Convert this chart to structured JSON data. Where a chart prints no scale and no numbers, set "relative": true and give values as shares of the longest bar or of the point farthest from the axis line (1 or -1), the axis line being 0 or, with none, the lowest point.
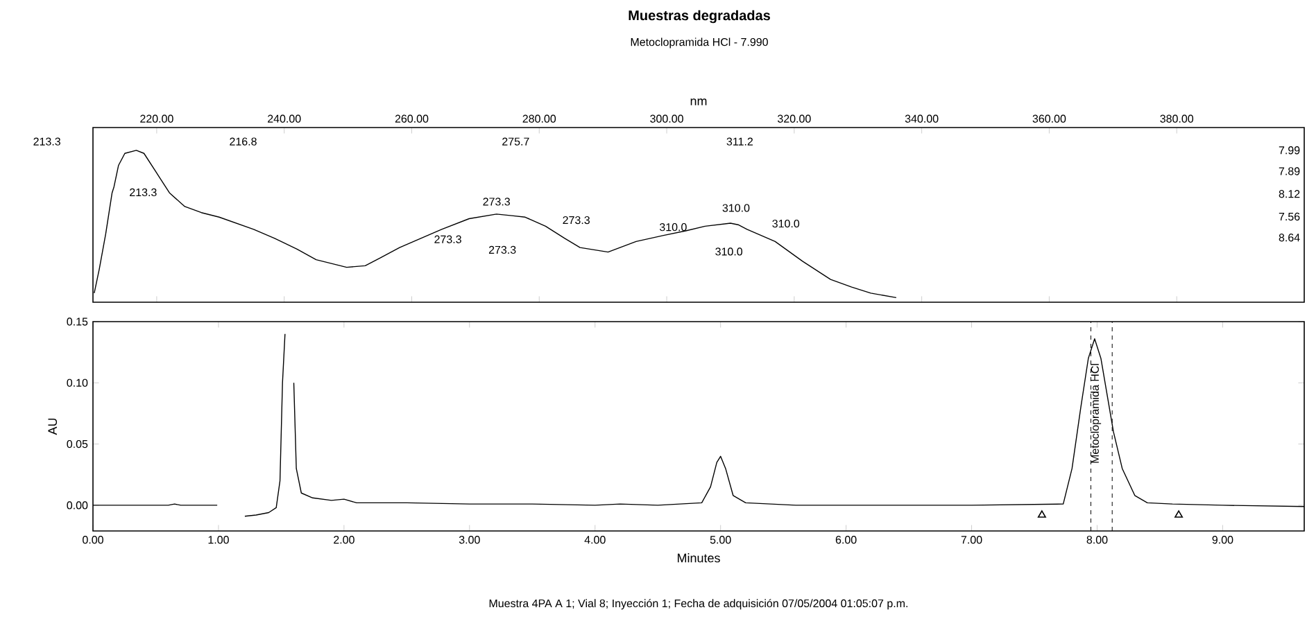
{
  "chart_data": [
    {
      "type": "line",
      "title": "Muestras degradadas",
      "subtitle": "Metoclopramida HCl - 7.990",
      "xlabel": "nm",
      "relative": true,
      "xlim": [
        210,
        400
      ],
      "xticks": [
        {
          "value": 220,
          "label": "220.00"
        },
        {
          "value": 240,
          "label": "240.00"
        },
        {
          "value": 260,
          "label": "260.00"
        },
        {
          "value": 280,
          "label": "280.00"
        },
        {
          "value": 300,
          "label": "300.00"
        },
        {
          "value": 320,
          "label": "320.00"
        },
        {
          "value": 340,
          "label": "340.00"
        },
        {
          "value": 360,
          "label": "360.00"
        },
        {
          "value": 380,
          "label": "380.00"
        }
      ],
      "series": [
        {
          "color": "#000000",
          "x": [
            210.2,
            211.0,
            212.0,
            213.0,
            213.3,
            214.0,
            215.0,
            216.8,
            218.0,
            220.0,
            222.0,
            224.4,
            227,
            229.8,
            235.2,
            238.5,
            242,
            245,
            249.8,
            252.7,
            255,
            258.1,
            264.7,
            269,
            273.3,
            275.7,
            277.8,
            281,
            284,
            286.4,
            290.8,
            295.2,
            299.5,
            303,
            306,
            310,
            311.2,
            312.6,
            317,
            321.3,
            325.7,
            329,
            332,
            336
          ],
          "values": [
            0.06,
            0.22,
            0.45,
            0.72,
            0.76,
            0.9,
            0.98,
            1.0,
            0.98,
            0.85,
            0.72,
            0.63,
            0.59,
            0.56,
            0.48,
            0.42,
            0.35,
            0.28,
            0.23,
            0.24,
            0.29,
            0.36,
            0.48,
            0.55,
            0.58,
            0.57,
            0.56,
            0.5,
            0.42,
            0.36,
            0.33,
            0.4,
            0.44,
            0.47,
            0.5,
            0.52,
            0.51,
            0.48,
            0.4,
            0.27,
            0.15,
            0.1,
            0.06,
            0.03
          ]
        }
      ],
      "annotations": [
        {
          "text": "213.3",
          "x": 213.3,
          "y": 0.76
        },
        {
          "text": "273.3",
          "x": 273.3,
          "y": 0.58
        },
        {
          "text": "310.0",
          "x": 310,
          "y": 0.52
        },
        "213.3",
        "216.8",
        "275.7",
        "311.2",
        "273.3",
        "273.3",
        "273.3",
        "310.0",
        "310.0",
        "310.0",
        "7.99",
        "7.89",
        "8.12",
        "7.56",
        "8.64"
      ]
    },
    {
      "type": "line",
      "xlabel": "Minutes",
      "ylabel": "AU",
      "xlim": [
        0,
        9.65
      ],
      "ylim": [
        -0.021,
        0.15
      ],
      "xticks": [
        {
          "value": 0,
          "label": "0.00"
        },
        {
          "value": 1,
          "label": "1.00"
        },
        {
          "value": 2,
          "label": "2.00"
        },
        {
          "value": 3,
          "label": "3.00"
        },
        {
          "value": 4,
          "label": "4.00"
        },
        {
          "value": 5,
          "label": "5.00"
        },
        {
          "value": 6,
          "label": "6.00"
        },
        {
          "value": 7,
          "label": "7.00"
        },
        {
          "value": 8,
          "label": "8.00"
        },
        {
          "value": 9,
          "label": "9.00"
        }
      ],
      "yticks": [
        {
          "value": 0,
          "label": "0.00"
        },
        {
          "value": 0.05,
          "label": "0.05"
        },
        {
          "value": 0.1,
          "label": "0.10"
        },
        {
          "value": 0.15,
          "label": "0.15"
        }
      ],
      "series": [
        {
          "color": "#000000",
          "x": [
            0,
            0.6,
            0.65,
            0.7,
            0.99,
            1.01,
            1.19,
            1.21,
            1.3,
            1.4,
            1.46,
            1.49,
            1.51,
            1.53,
            1.55,
            1.58,
            1.6,
            1.62,
            1.66,
            1.75,
            1.9,
            2.0,
            2.1,
            2.5,
            3.0,
            3.5,
            4.0,
            4.2,
            4.5,
            4.85,
            4.92,
            4.97,
            5.0,
            5.04,
            5.1,
            5.2,
            5.6,
            7.0,
            7.73,
            7.8,
            7.87,
            7.93,
            7.98,
            8.03,
            8.08,
            8.13,
            8.2,
            8.3,
            8.4,
            8.6,
            9.0,
            9.65
          ],
          "values": [
            0,
            0,
            0.001,
            0,
            0,
            null,
            null,
            -0.009,
            -0.008,
            -0.006,
            -0.002,
            0.02,
            0.1,
            0.14,
            null,
            null,
            0.1,
            0.03,
            0.01,
            0.006,
            0.004,
            0.005,
            0.002,
            0.002,
            0.001,
            0.001,
            0,
            0.001,
            0,
            0.002,
            0.015,
            0.035,
            0.04,
            0.03,
            0.008,
            0.002,
            0,
            0,
            0.001,
            0.03,
            0.08,
            0.12,
            0.136,
            0.12,
            0.09,
            0.06,
            0.03,
            0.008,
            0.002,
            0.001,
            0,
            -0.001
          ]
        },
        {
          "type": "scatter",
          "marker": "triangle",
          "color": "#000000",
          "x": [
            7.56,
            8.65
          ],
          "values": [
            -0.008,
            -0.008
          ]
        }
      ],
      "ref_lines": [
        {
          "axis": "x",
          "value": 7.95,
          "line_style": "dashed"
        },
        {
          "axis": "x",
          "value": 8.12,
          "line_style": "dashed"
        }
      ],
      "annotations": [
        {
          "text": "Metoclopramida HCl",
          "x": 7.99,
          "y": 0.075
        },
        "Muestra 4PA A 1; Vial 8; Inyección 1; Fecha de adquisición 07/05/2004 01:05:07 p.m."
      ]
    }
  ]
}
